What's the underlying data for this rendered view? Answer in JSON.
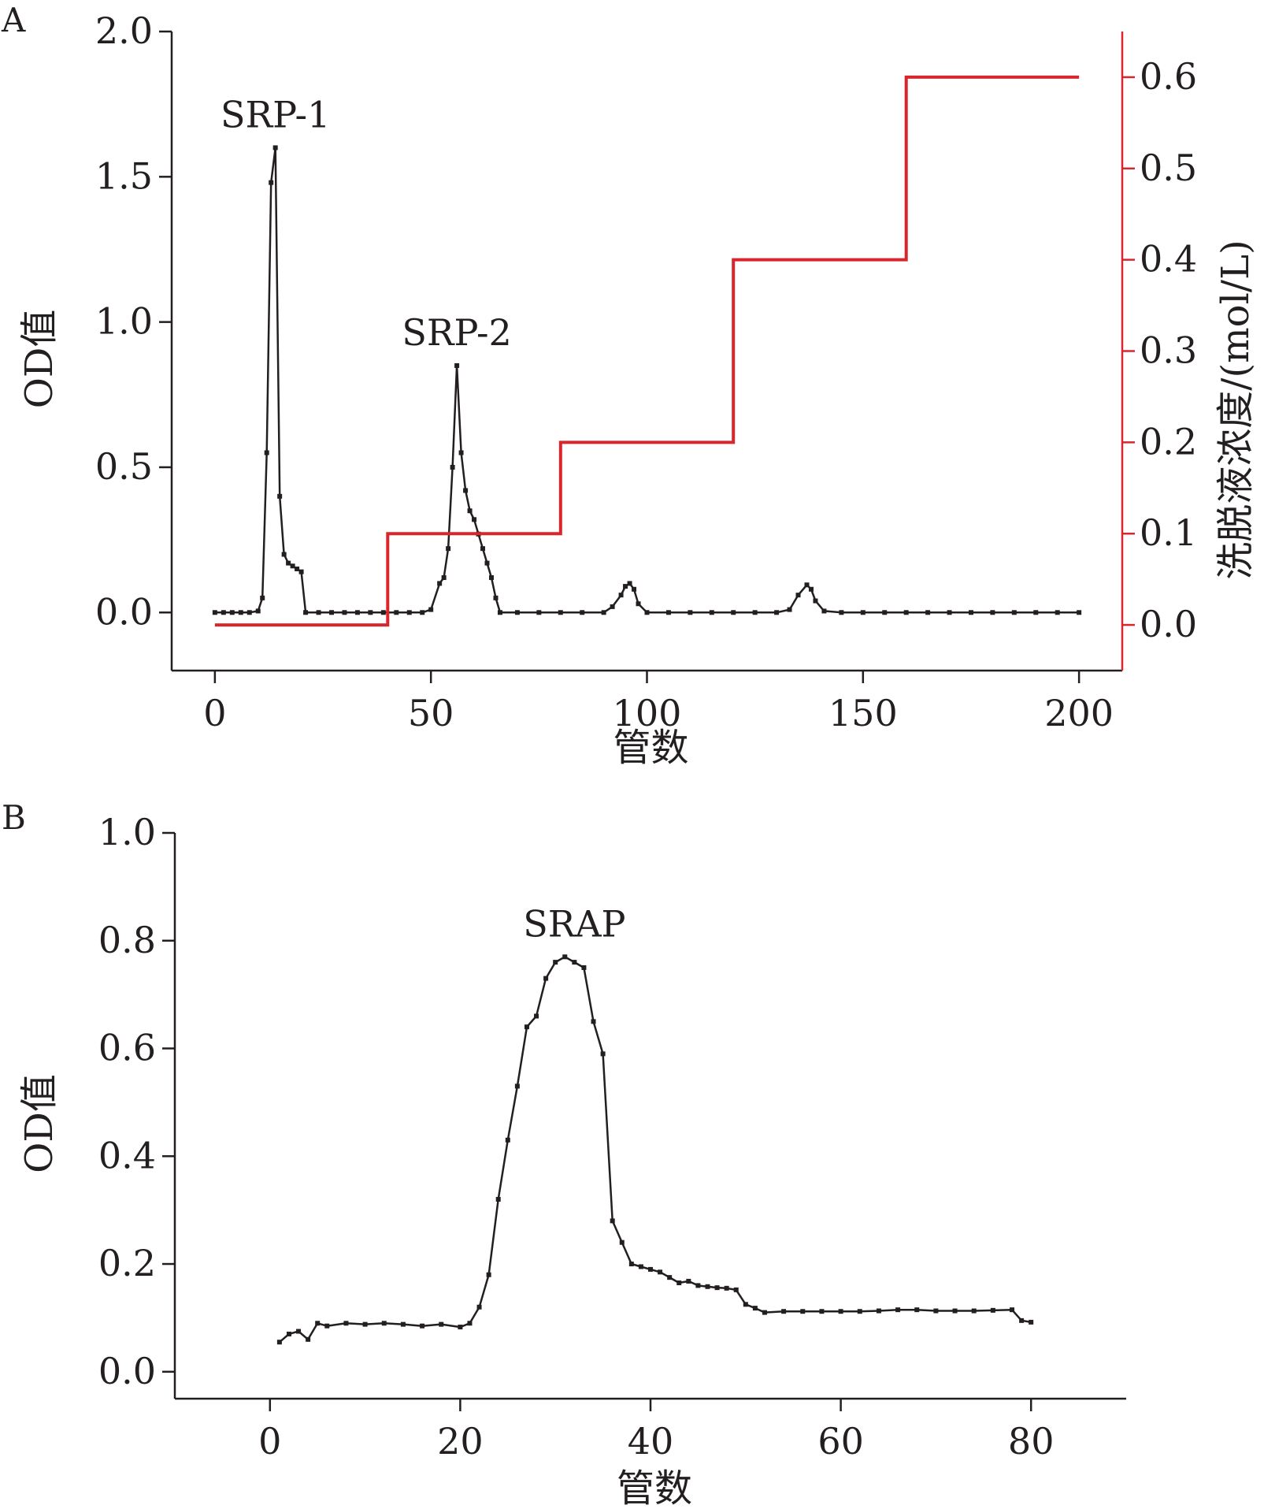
{
  "chart_data": [
    {
      "panel": "A",
      "type": "line",
      "xlabel": "管数",
      "ylabel": "OD值",
      "y2label": "洗脱液浓度/(mol/L)",
      "xlim": [
        -10,
        210
      ],
      "ylim": [
        -0.2,
        2.0
      ],
      "y2lim": [
        -0.05,
        0.65
      ],
      "x_ticks": [
        0,
        50,
        100,
        150,
        200
      ],
      "y_ticks": [
        "0.0",
        "0.5",
        "1.0",
        "1.5",
        "2.0"
      ],
      "y2_ticks": [
        "0.0",
        "0.1",
        "0.2",
        "0.3",
        "0.4",
        "0.5",
        "0.6"
      ],
      "grid": false,
      "colors": {
        "od": "#231f20",
        "gradient": "#d9262c"
      },
      "annotations": [
        {
          "text": "SRP-1",
          "x": 14,
          "y": 1.6
        },
        {
          "text": "SRP-2",
          "x": 56,
          "y": 0.85
        }
      ],
      "series": [
        {
          "axis": "left",
          "points": [
            [
              0,
              0.0
            ],
            [
              2,
              0.0
            ],
            [
              4,
              0.0
            ],
            [
              6,
              0.0
            ],
            [
              8,
              0.0
            ],
            [
              10,
              0.005
            ],
            [
              11,
              0.05
            ],
            [
              12,
              0.55
            ],
            [
              13,
              1.48
            ],
            [
              14,
              1.6
            ],
            [
              15,
              0.4
            ],
            [
              16,
              0.2
            ],
            [
              17,
              0.17
            ],
            [
              18,
              0.16
            ],
            [
              19,
              0.15
            ],
            [
              20,
              0.14
            ],
            [
              21,
              0.0
            ],
            [
              24,
              0.0
            ],
            [
              27,
              0.0
            ],
            [
              30,
              0.0
            ],
            [
              33,
              0.0
            ],
            [
              36,
              0.0
            ],
            [
              39,
              0.0
            ],
            [
              42,
              0.0
            ],
            [
              45,
              0.0
            ],
            [
              48,
              0.0
            ],
            [
              50,
              0.01
            ],
            [
              52,
              0.1
            ],
            [
              53,
              0.12
            ],
            [
              54,
              0.22
            ],
            [
              55,
              0.5
            ],
            [
              56,
              0.85
            ],
            [
              57,
              0.55
            ],
            [
              58,
              0.42
            ],
            [
              59,
              0.35
            ],
            [
              60,
              0.32
            ],
            [
              61,
              0.27
            ],
            [
              62,
              0.22
            ],
            [
              63,
              0.17
            ],
            [
              64,
              0.12
            ],
            [
              65,
              0.05
            ],
            [
              66,
              0.0
            ],
            [
              70,
              0.0
            ],
            [
              75,
              0.0
            ],
            [
              80,
              0.0
            ],
            [
              85,
              0.0
            ],
            [
              90,
              0.0
            ],
            [
              92,
              0.02
            ],
            [
              94,
              0.06
            ],
            [
              95,
              0.09
            ],
            [
              96,
              0.1
            ],
            [
              97,
              0.08
            ],
            [
              98,
              0.03
            ],
            [
              100,
              0.0
            ],
            [
              105,
              0.0
            ],
            [
              110,
              0.0
            ],
            [
              115,
              0.0
            ],
            [
              120,
              0.0
            ],
            [
              125,
              0.0
            ],
            [
              130,
              0.0
            ],
            [
              133,
              0.01
            ],
            [
              135,
              0.06
            ],
            [
              137,
              0.095
            ],
            [
              138,
              0.08
            ],
            [
              139,
              0.04
            ],
            [
              141,
              0.005
            ],
            [
              145,
              0.0
            ],
            [
              150,
              0.0
            ],
            [
              155,
              0.0
            ],
            [
              160,
              0.0
            ],
            [
              165,
              0.0
            ],
            [
              170,
              0.0
            ],
            [
              175,
              0.0
            ],
            [
              180,
              0.0
            ],
            [
              185,
              0.0
            ],
            [
              190,
              0.0
            ],
            [
              195,
              0.0
            ],
            [
              200,
              0.0
            ]
          ]
        },
        {
          "axis": "right",
          "step": true,
          "points": [
            [
              0,
              0.0
            ],
            [
              40,
              0.0
            ],
            [
              40,
              0.1
            ],
            [
              80,
              0.1
            ],
            [
              80,
              0.2
            ],
            [
              120,
              0.2
            ],
            [
              120,
              0.4
            ],
            [
              160,
              0.4
            ],
            [
              160,
              0.6
            ],
            [
              200,
              0.6
            ]
          ]
        }
      ]
    },
    {
      "panel": "B",
      "type": "line",
      "xlabel": "管数",
      "ylabel": "OD值",
      "xlim": [
        -10,
        90
      ],
      "ylim": [
        -0.05,
        1.0
      ],
      "x_ticks": [
        0,
        20,
        40,
        60,
        80
      ],
      "y_ticks": [
        "0.0",
        "0.2",
        "0.4",
        "0.6",
        "0.8",
        "1.0"
      ],
      "grid": false,
      "colors": {
        "od": "#231f20"
      },
      "annotations": [
        {
          "text": "SRAP",
          "x": 32,
          "y": 0.77
        }
      ],
      "series": [
        {
          "axis": "left",
          "points": [
            [
              1,
              0.055
            ],
            [
              2,
              0.07
            ],
            [
              3,
              0.075
            ],
            [
              4,
              0.06
            ],
            [
              5,
              0.09
            ],
            [
              6,
              0.085
            ],
            [
              8,
              0.09
            ],
            [
              10,
              0.088
            ],
            [
              12,
              0.09
            ],
            [
              14,
              0.088
            ],
            [
              16,
              0.085
            ],
            [
              18,
              0.088
            ],
            [
              20,
              0.083
            ],
            [
              21,
              0.09
            ],
            [
              22,
              0.12
            ],
            [
              23,
              0.18
            ],
            [
              24,
              0.32
            ],
            [
              25,
              0.43
            ],
            [
              26,
              0.53
            ],
            [
              27,
              0.64
            ],
            [
              28,
              0.66
            ],
            [
              29,
              0.73
            ],
            [
              30,
              0.76
            ],
            [
              31,
              0.77
            ],
            [
              32,
              0.76
            ],
            [
              33,
              0.75
            ],
            [
              34,
              0.65
            ],
            [
              35,
              0.59
            ],
            [
              36,
              0.28
            ],
            [
              37,
              0.24
            ],
            [
              38,
              0.2
            ],
            [
              39,
              0.195
            ],
            [
              40,
              0.19
            ],
            [
              41,
              0.185
            ],
            [
              42,
              0.175
            ],
            [
              43,
              0.165
            ],
            [
              44,
              0.168
            ],
            [
              45,
              0.16
            ],
            [
              46,
              0.158
            ],
            [
              47,
              0.156
            ],
            [
              48,
              0.155
            ],
            [
              49,
              0.152
            ],
            [
              50,
              0.125
            ],
            [
              51,
              0.118
            ],
            [
              52,
              0.11
            ],
            [
              54,
              0.112
            ],
            [
              56,
              0.112
            ],
            [
              58,
              0.112
            ],
            [
              60,
              0.112
            ],
            [
              62,
              0.112
            ],
            [
              64,
              0.113
            ],
            [
              66,
              0.115
            ],
            [
              68,
              0.115
            ],
            [
              70,
              0.113
            ],
            [
              72,
              0.113
            ],
            [
              74,
              0.113
            ],
            [
              76,
              0.114
            ],
            [
              78,
              0.115
            ],
            [
              79,
              0.095
            ],
            [
              80,
              0.092
            ]
          ]
        }
      ]
    }
  ]
}
